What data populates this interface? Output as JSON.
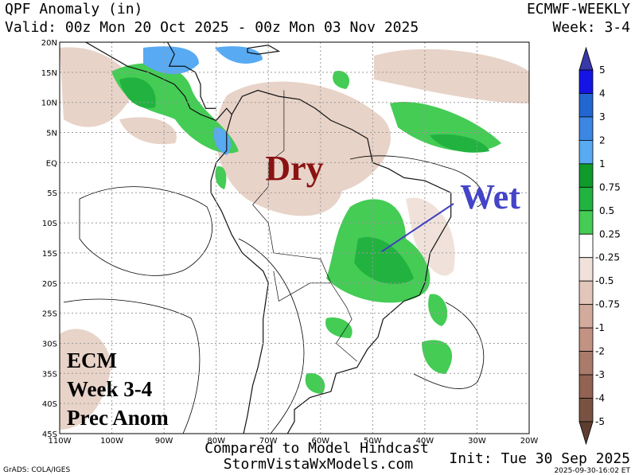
{
  "header": {
    "title": "QPF Anomaly (in)",
    "model": "ECMWF-WEEKLY",
    "valid": "Valid: 00z Mon 20 Oct 2025 - 00z Mon 03 Nov 2025",
    "week": "Week: 3-4"
  },
  "map": {
    "lat_labels": [
      "20N",
      "15N",
      "10N",
      "5N",
      "EQ",
      "5S",
      "10S",
      "15S",
      "20S",
      "25S",
      "30S",
      "35S",
      "40S",
      "45S"
    ],
    "lon_labels": [
      "110W",
      "100W",
      "90W",
      "80W",
      "70W",
      "60W",
      "50W",
      "40W",
      "30W",
      "20W"
    ],
    "dry_label": "Dry",
    "wet_label": "Wet",
    "info_lines": [
      "ECM",
      "Week 3-4",
      "Prec Anom"
    ]
  },
  "colorbar": {
    "labels": [
      "5",
      "4",
      "3",
      "2",
      "1",
      "0.75",
      "0.5",
      "0.25",
      "-0.25",
      "-0.5",
      "-0.75",
      "-1",
      "-2",
      "-3",
      "-4",
      "-5"
    ],
    "colors": [
      "#3838a8",
      "#1414e6",
      "#2266d2",
      "#3c86e4",
      "#58aaf2",
      "#0f9a2c",
      "#22b240",
      "#44cc55",
      "#ffffff",
      "#f0e2da",
      "#e2c6ba",
      "#d2ab9c",
      "#c29282",
      "#aa7a6a",
      "#926252",
      "#7a5242",
      "#5e3e2e"
    ]
  },
  "footer": {
    "compared": "Compared to Model Hindcast",
    "site": "StormVistaWxModels.com",
    "init": "Init: Tue 30 Sep 2025",
    "grads": "GrADS: COLA/IGES",
    "stamp": "2025-09-30-16:02 ET"
  }
}
